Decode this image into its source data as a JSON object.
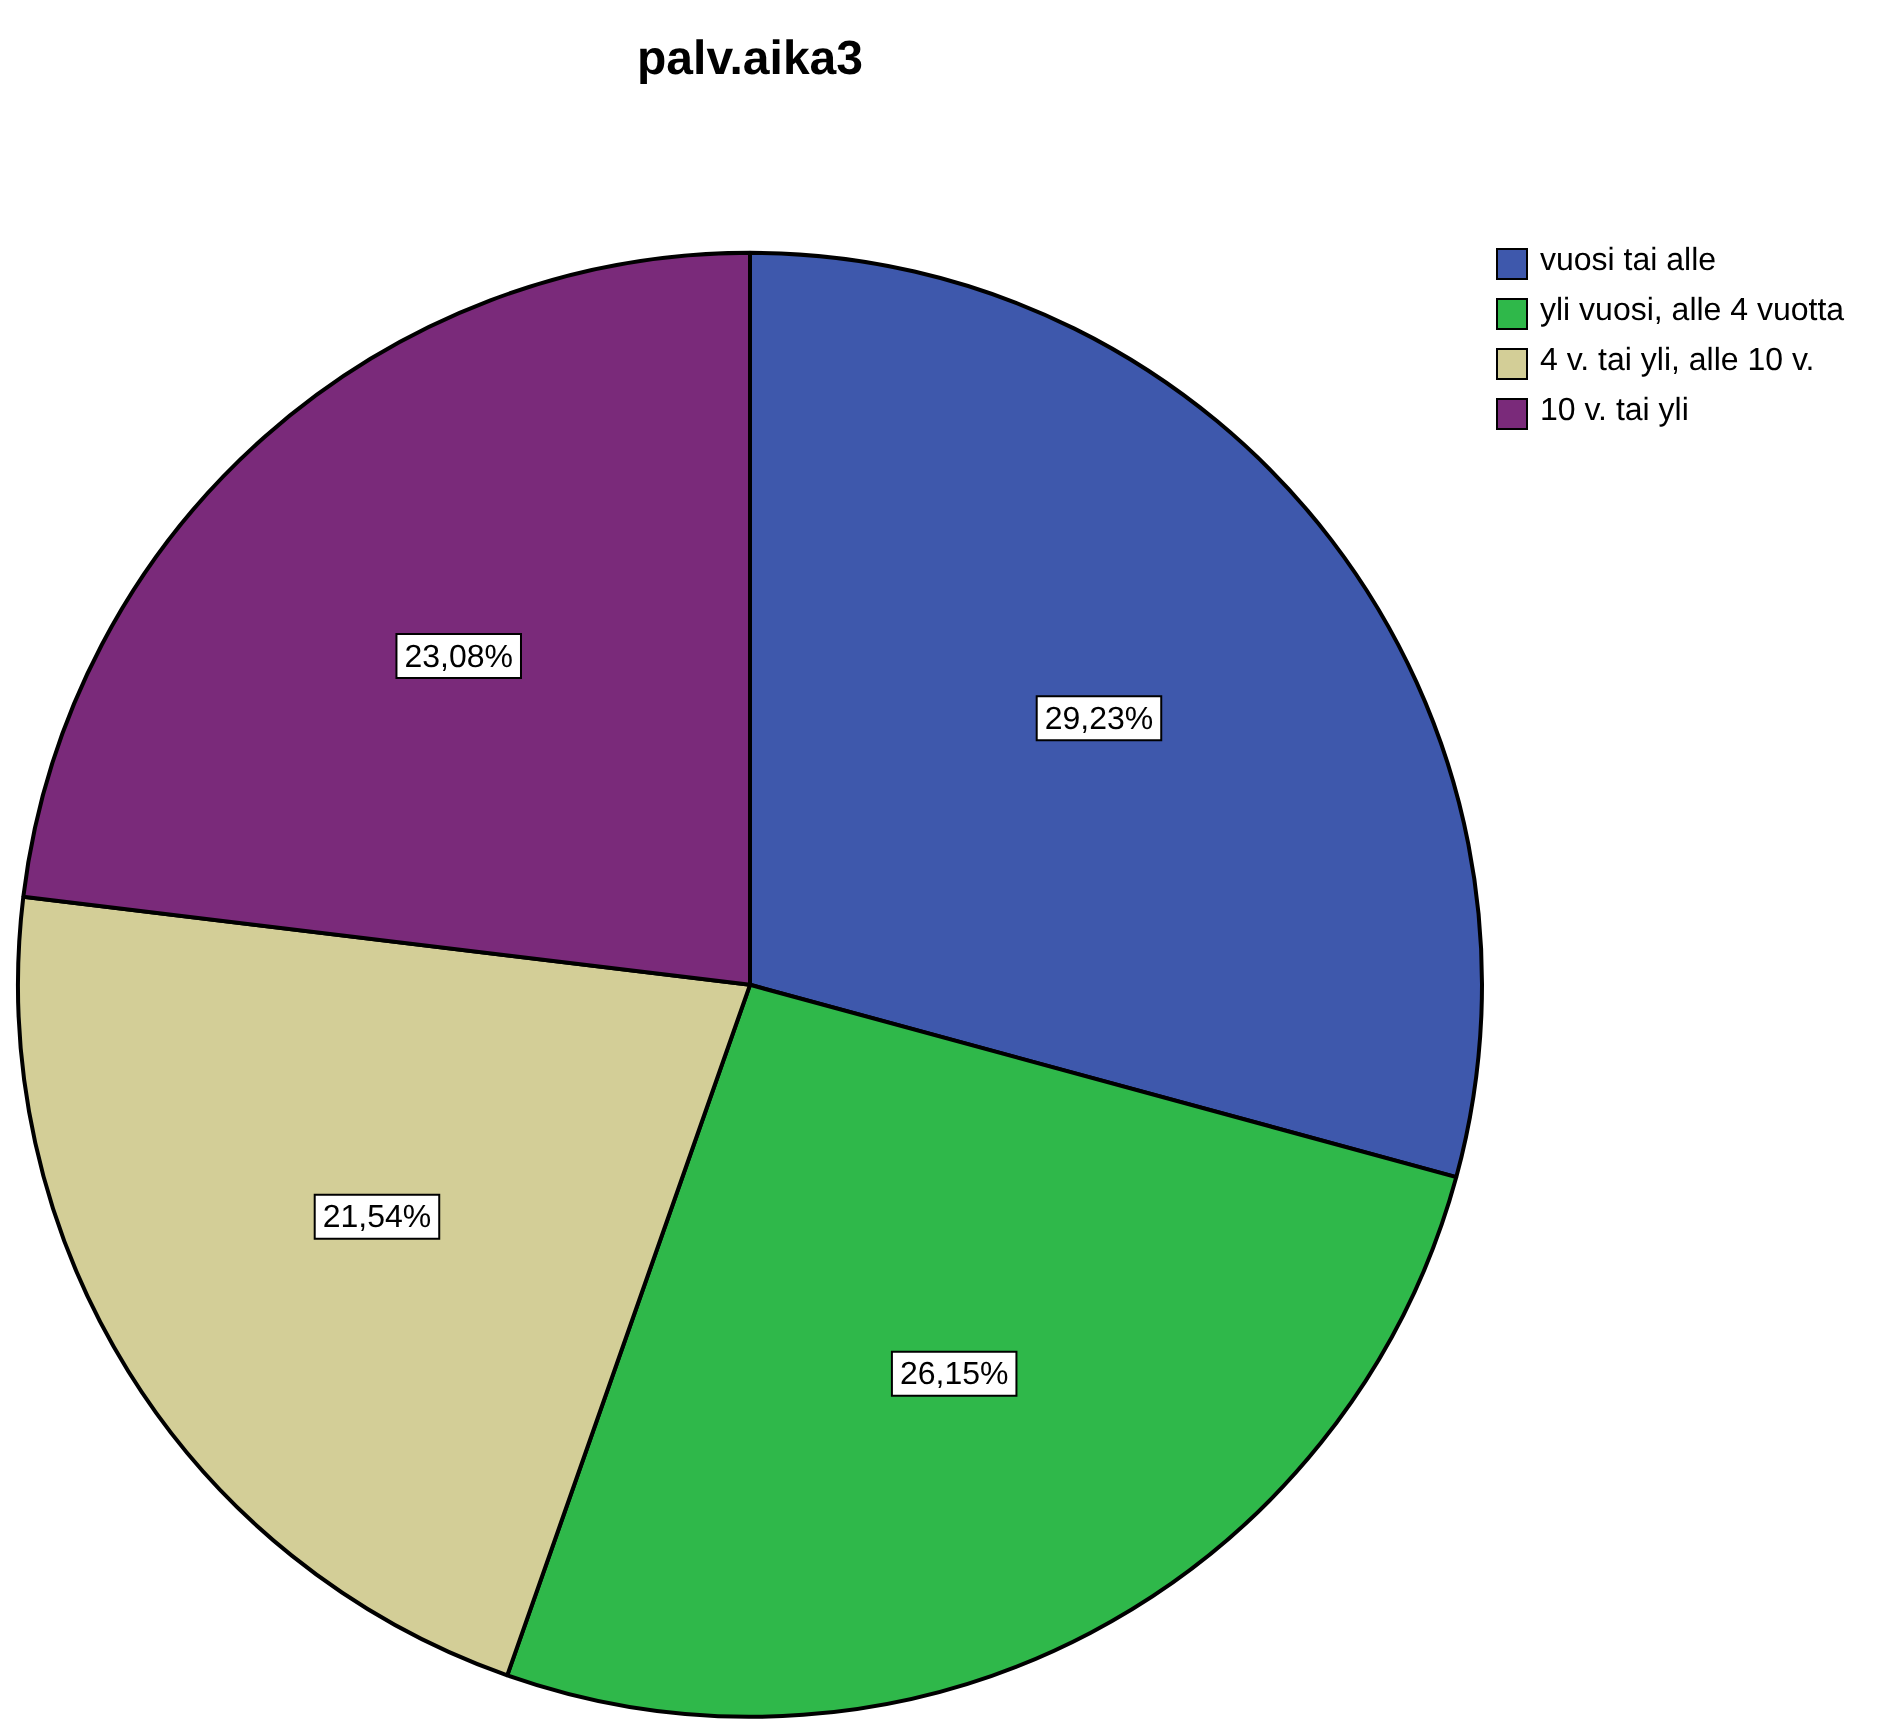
{
  "chart_data": {
    "type": "pie",
    "title": "palv.aika3",
    "categories": [
      "vuosi tai alle",
      "yli vuosi, alle 4 vuotta",
      "4 v. tai yli, alle 10 v.",
      "10 v. tai yli"
    ],
    "values": [
      29.23,
      26.15,
      21.54,
      23.08
    ],
    "colors": [
      "#3e58ac",
      "#2fb84a",
      "#d3ce97",
      "#7a2a7a"
    ],
    "value_labels": [
      "29,23%",
      "26,15%",
      "21,54%",
      "23,08%"
    ],
    "legend": "top right"
  }
}
